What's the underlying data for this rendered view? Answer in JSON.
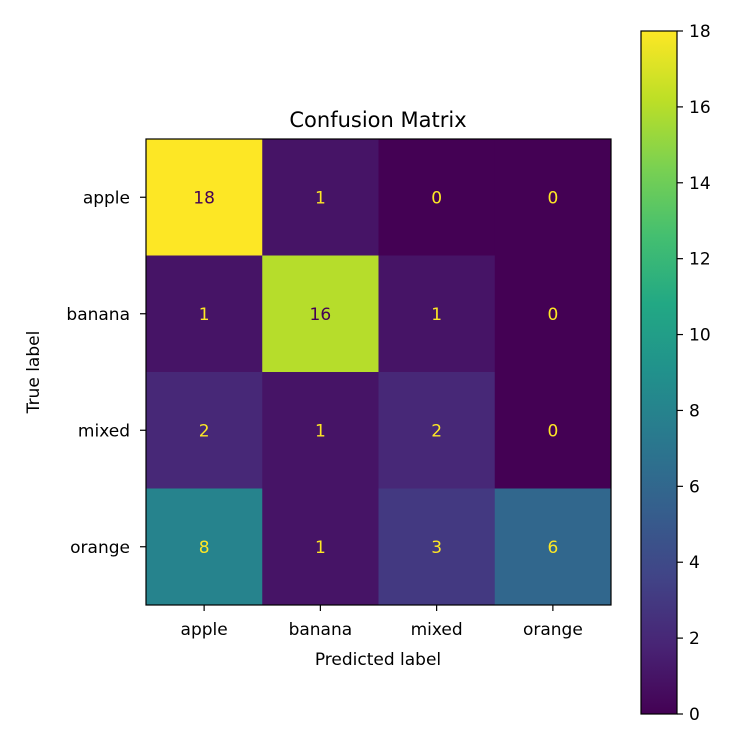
{
  "chart_data": {
    "type": "heatmap",
    "title": "Confusion Matrix",
    "xlabel": "Predicted label",
    "ylabel": "True label",
    "x_categories": [
      "apple",
      "banana",
      "mixed",
      "orange"
    ],
    "y_categories": [
      "apple",
      "banana",
      "mixed",
      "orange"
    ],
    "values": [
      [
        18,
        1,
        0,
        0
      ],
      [
        1,
        16,
        1,
        0
      ],
      [
        2,
        1,
        2,
        0
      ],
      [
        8,
        1,
        3,
        6
      ]
    ],
    "colorbar": {
      "colormap": "viridis",
      "range": [
        0,
        18
      ],
      "ticks": [
        0,
        2,
        4,
        6,
        8,
        10,
        12,
        14,
        16,
        18
      ]
    },
    "label_colors": {
      "on_dark": "#fde725",
      "on_light": "#440154"
    }
  }
}
